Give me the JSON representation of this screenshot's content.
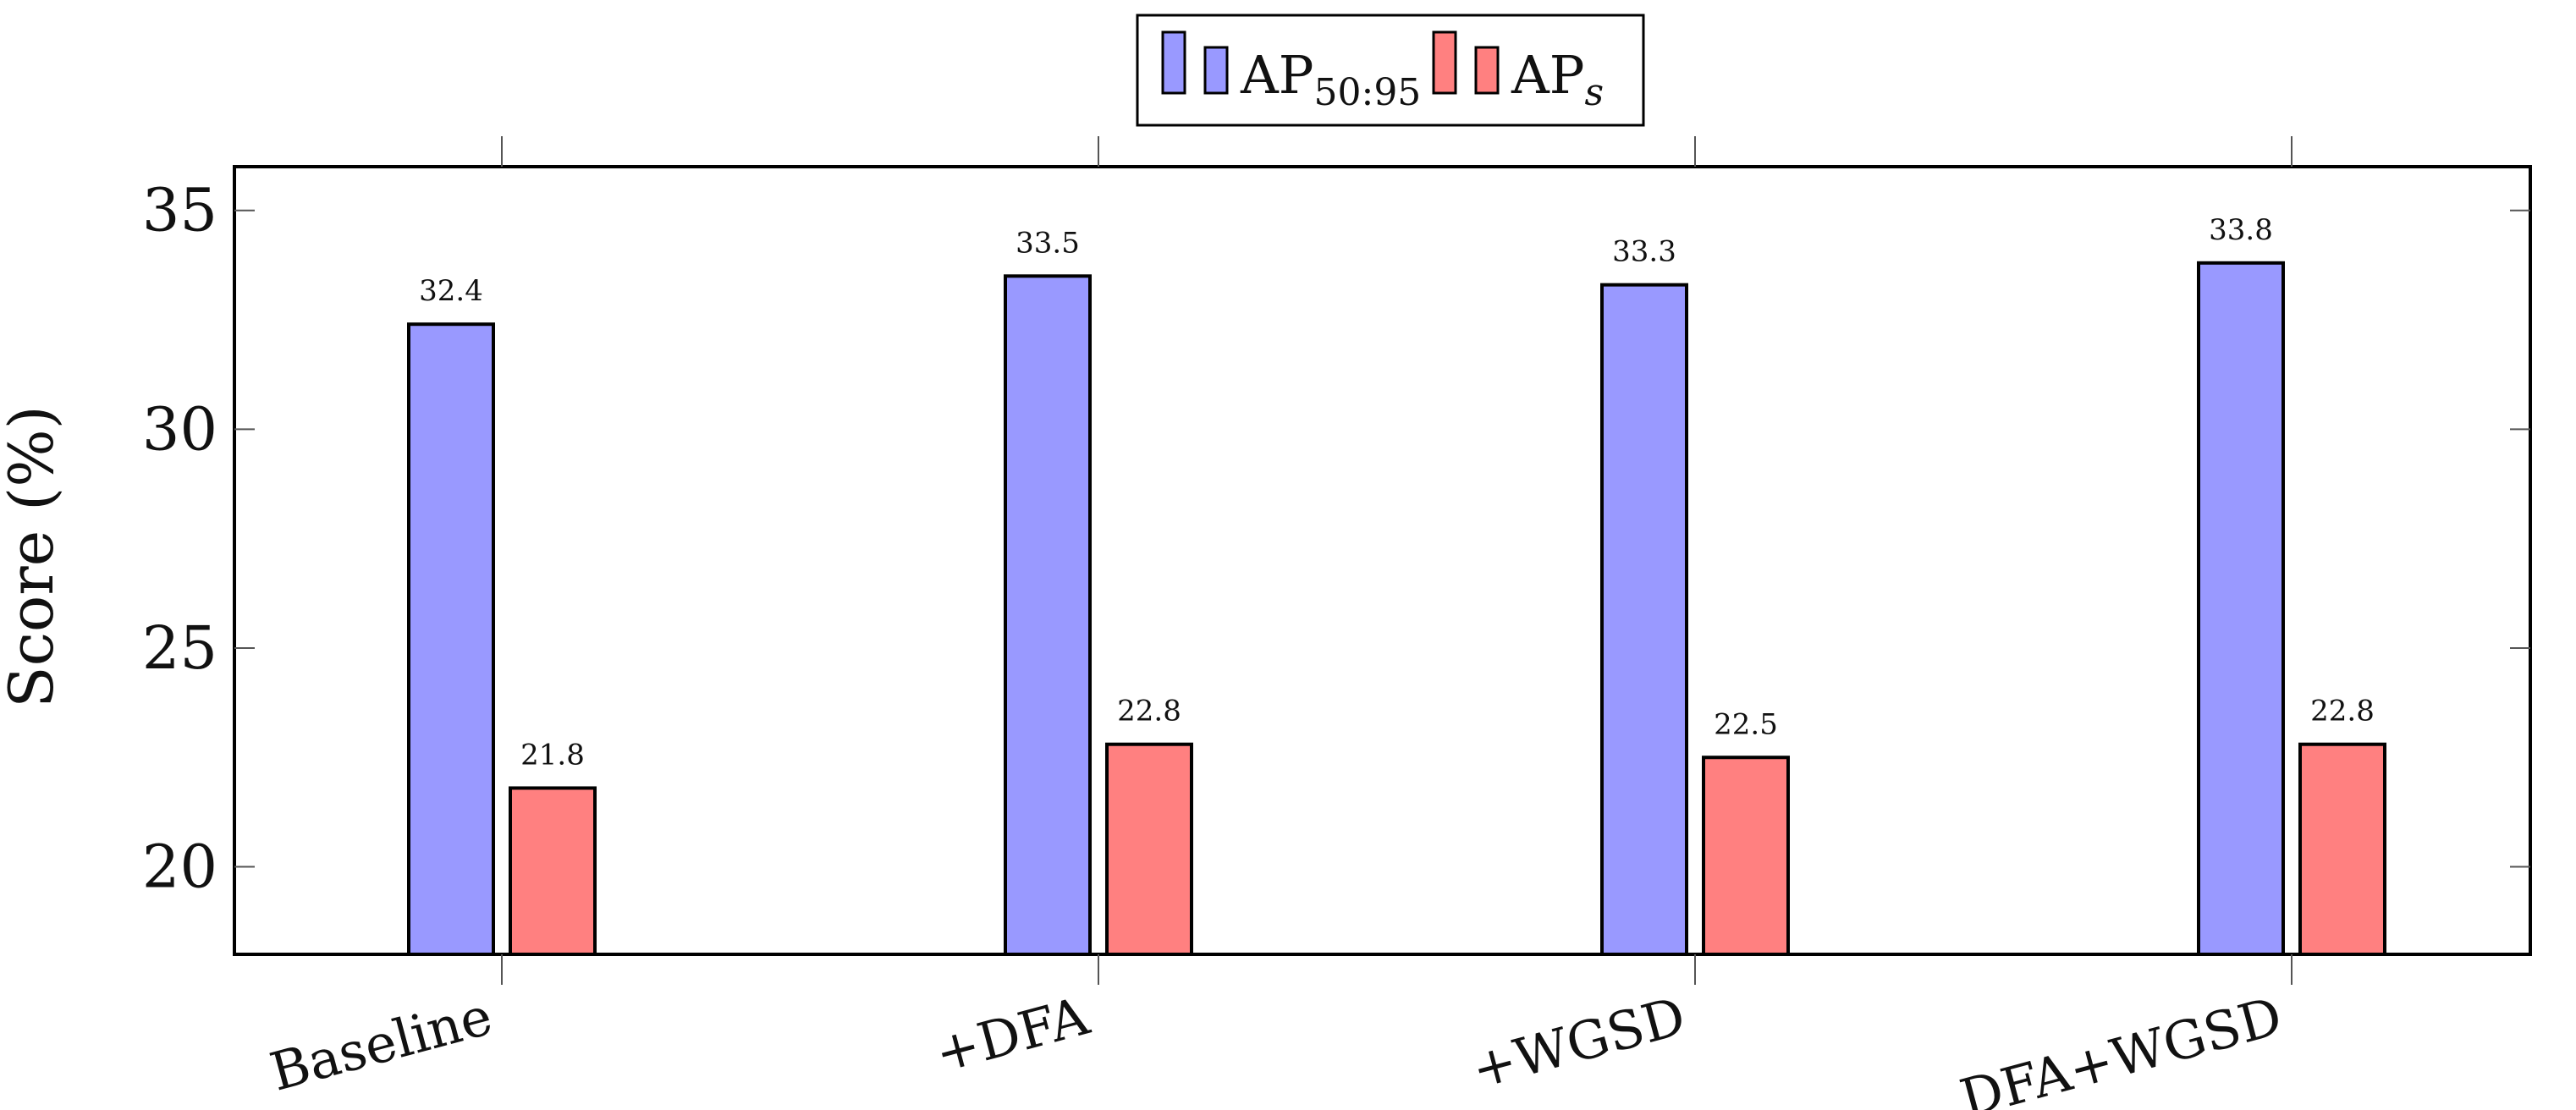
{
  "chart_data": {
    "type": "bar",
    "categories": [
      "Baseline",
      "+DFA",
      "+WGSD",
      "DFA+WGSD"
    ],
    "series": [
      {
        "name": "AP",
        "subscript": "50:95",
        "subscript_italic": false,
        "color": "#9999ff",
        "values": [
          32.4,
          33.5,
          33.3,
          33.8
        ]
      },
      {
        "name": "AP",
        "subscript": "s",
        "subscript_italic": true,
        "color": "#ff8080",
        "values": [
          21.8,
          22.8,
          22.5,
          22.8
        ]
      }
    ],
    "data_labels": [
      [
        "32.4",
        "33.5",
        "33.3",
        "33.8"
      ],
      [
        "21.8",
        "22.8",
        "22.5",
        "22.8"
      ]
    ],
    "yticks": [
      20,
      25,
      30,
      35
    ],
    "ytick_labels": [
      "20",
      "25",
      "30",
      "35"
    ],
    "ylim": [
      18,
      36
    ],
    "ylabel": "Score (%)",
    "xlabel": "",
    "title": "",
    "grid": false,
    "legend_position": "top-center",
    "x_tick_label_rotation": "slanted"
  }
}
